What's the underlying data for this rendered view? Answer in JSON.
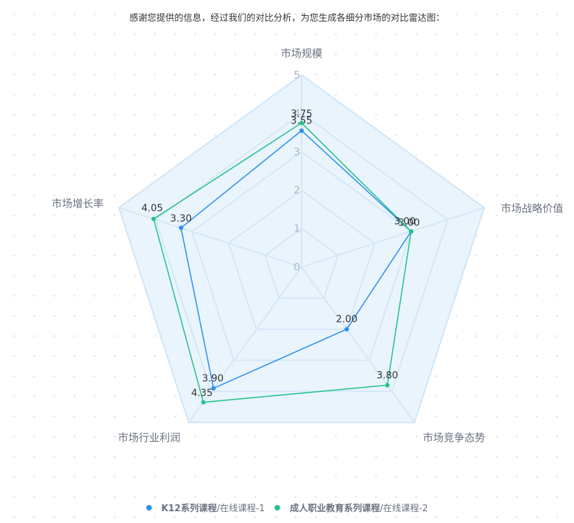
{
  "intro": "感谢您提供的信息，经过我们的对比分析，为您生成各细分市场的对比雷达图：",
  "chart_data": {
    "type": "radar",
    "indicators": [
      "市场规模",
      "市场战略价值",
      "市场竞争态势",
      "市场行业利润",
      "市场增长率"
    ],
    "max": 5,
    "ticks": [
      "0",
      "1",
      "2",
      "3",
      "4",
      "5"
    ],
    "series": [
      {
        "name": "K12系列课程",
        "suffix": "/在线课程-1",
        "color": "#2e8ff0",
        "values": [
          3.55,
          3.0,
          2.0,
          3.9,
          3.3
        ],
        "labels": [
          "3.55",
          "3.00",
          "2.00",
          "3.90",
          "3.30"
        ]
      },
      {
        "name": "成人职业教育系列课程",
        "suffix": "/在线课程-2",
        "color": "#26c28c",
        "values": [
          3.75,
          3.0,
          3.8,
          4.35,
          4.05
        ],
        "labels": [
          "3.75",
          "3.00",
          "3.80",
          "4.35",
          "4.05"
        ]
      }
    ],
    "legend": "bottom-center"
  }
}
